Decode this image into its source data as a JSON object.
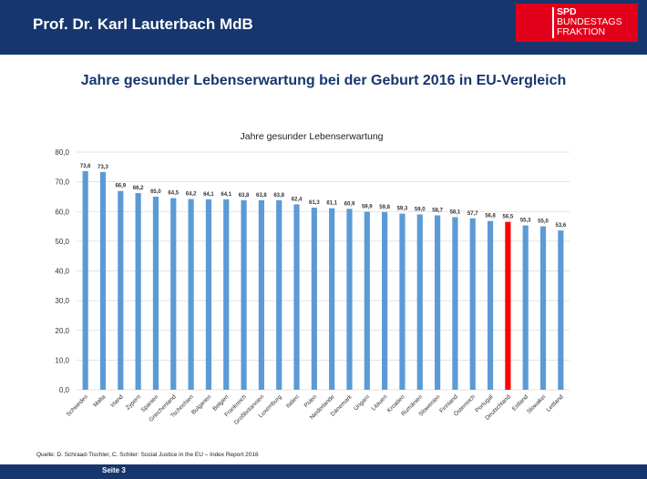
{
  "header": {
    "title": "Prof. Dr. Karl Lauterbach MdB"
  },
  "logo": {
    "line1": "SPD",
    "line2": "BUNDESTAGS",
    "line3": "FRAKTION"
  },
  "slide": {
    "title": "Jahre gesunder Lebenserwartung bei der Geburt 2016 in EU-Vergleich"
  },
  "source": "Quelle: D. Schraad-Tischler, C. Schiler: Social Justice in the EU – Index Report 2016",
  "footer": {
    "page_label": "Seite 3"
  },
  "colors": {
    "bar": "#5b9bd5",
    "highlight": "#ff0000",
    "header": "#17366e",
    "logo": "#e2001a"
  },
  "chart_data": {
    "type": "bar",
    "title": "Jahre  gesunder Lebenserwartung",
    "categories": [
      "Schweden",
      "Malta",
      "Irland",
      "Zypern",
      "Spanien",
      "Griechenland",
      "Tschechien",
      "Bulgarien",
      "Belgien",
      "Frankreich",
      "Großbritannien",
      "Luxemburg",
      "Italien",
      "Polen",
      "Niederlande",
      "Dänemark",
      "Ungarn",
      "Litauen",
      "Kroatien",
      "Rumänien",
      "Slowenien",
      "Finnland",
      "Österreich",
      "Portugal",
      "Deutschland",
      "Estland",
      "Slowakei",
      "Lettland"
    ],
    "values": [
      73.6,
      73.3,
      66.9,
      66.2,
      65.0,
      64.5,
      64.2,
      64.1,
      64.1,
      63.8,
      63.8,
      63.8,
      62.4,
      61.3,
      61.1,
      60.9,
      59.9,
      59.8,
      59.3,
      59.0,
      58.7,
      58.1,
      57.7,
      56.8,
      56.5,
      55.3,
      55.0,
      53.6
    ],
    "value_labels": [
      "73,6",
      "73,3",
      "66,9",
      "66,2",
      "65,0",
      "64,5",
      "64,2",
      "64,1",
      "64,1",
      "63,8",
      "63,8",
      "63,8",
      "62,4",
      "61,3",
      "61,1",
      "60,9",
      "59,9",
      "59,8",
      "59,3",
      "59,0",
      "58,7",
      "58,1",
      "57,7",
      "56,8",
      "56,5",
      "55,3",
      "55,0",
      "53,6"
    ],
    "highlight_category": "Deutschland",
    "ylim": [
      0,
      80
    ],
    "yticks": [
      "0,0",
      "10,0",
      "20,0",
      "30,0",
      "40,0",
      "50,0",
      "60,0",
      "70,0",
      "80,0"
    ],
    "grid": true,
    "legend": "none"
  }
}
